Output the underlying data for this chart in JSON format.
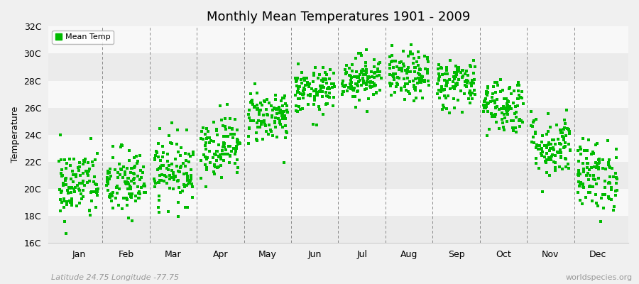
{
  "title": "Monthly Mean Temperatures 1901 - 2009",
  "ylabel": "Temperature",
  "subtitle": "Latitude 24.75 Longitude -77.75",
  "watermark": "worldspecies.org",
  "legend_label": "Mean Temp",
  "marker_color": "#00bb00",
  "marker_size": 3,
  "ylim": [
    16,
    32
  ],
  "yticks": [
    16,
    18,
    20,
    22,
    24,
    26,
    28,
    30,
    32
  ],
  "ytick_labels": [
    "16C",
    "18C",
    "20C",
    "22C",
    "24C",
    "26C",
    "28C",
    "30C",
    "32C"
  ],
  "month_names": [
    "Jan",
    "Feb",
    "Mar",
    "Apr",
    "May",
    "Jun",
    "Jul",
    "Aug",
    "Sep",
    "Oct",
    "Nov",
    "Dec"
  ],
  "monthly_means": [
    20.3,
    20.4,
    21.4,
    23.2,
    25.4,
    27.2,
    28.2,
    28.3,
    27.8,
    26.2,
    23.2,
    21.0
  ],
  "monthly_stds": [
    1.35,
    1.3,
    1.25,
    1.15,
    1.0,
    0.85,
    0.85,
    0.9,
    0.95,
    1.05,
    1.2,
    1.3
  ],
  "n_years": 109,
  "seed": 42,
  "band_colors": [
    "#ebebeb",
    "#f8f8f8"
  ],
  "fig_bg": "#f0f0f0",
  "spine_color": "#cccccc",
  "dash_color": "#888888"
}
